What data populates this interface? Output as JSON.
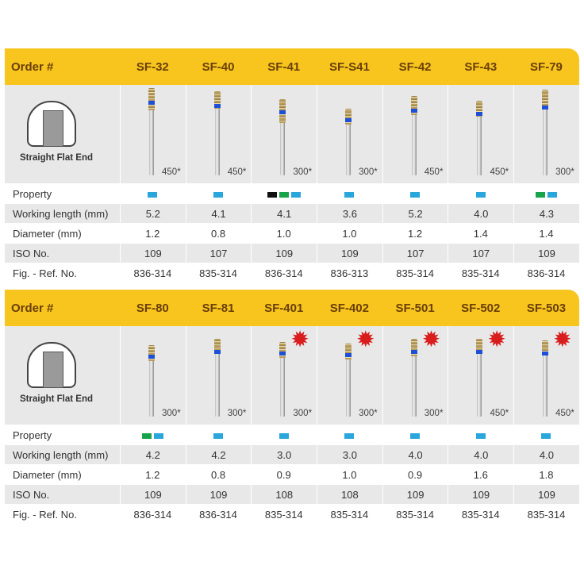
{
  "tables": [
    {
      "header_label": "Order #",
      "profile_label": "Straight Flat End",
      "row_labels": {
        "property": "Property",
        "working_length": "Working length (mm)",
        "diameter": "Diameter (mm)",
        "iso": "ISO No.",
        "ref": "Fig. - Ref. No."
      },
      "columns": [
        {
          "name": "SF-32",
          "rpm": "450*",
          "props": [
            "#29a6db"
          ],
          "working_length": "5.2",
          "diameter": "1.2",
          "iso": "109",
          "ref": "836-314",
          "is_new": false
        },
        {
          "name": "SF-40",
          "rpm": "450*",
          "props": [
            "#29a6db"
          ],
          "working_length": "4.1",
          "diameter": "0.8",
          "iso": "107",
          "ref": "835-314",
          "is_new": false
        },
        {
          "name": "SF-41",
          "rpm": "300*",
          "props": [
            "#111111",
            "#16a34a",
            "#29a6db"
          ],
          "working_length": "4.1",
          "diameter": "1.0",
          "iso": "109",
          "ref": "836-314",
          "is_new": false
        },
        {
          "name": "SF-S41",
          "rpm": "300*",
          "props": [
            "#29a6db"
          ],
          "working_length": "3.6",
          "diameter": "1.0",
          "iso": "109",
          "ref": "836-313",
          "is_new": false
        },
        {
          "name": "SF-42",
          "rpm": "450*",
          "props": [
            "#29a6db"
          ],
          "working_length": "5.2",
          "diameter": "1.2",
          "iso": "107",
          "ref": "835-314",
          "is_new": false
        },
        {
          "name": "SF-43",
          "rpm": "450*",
          "props": [
            "#29a6db"
          ],
          "working_length": "4.0",
          "diameter": "1.4",
          "iso": "107",
          "ref": "835-314",
          "is_new": false
        },
        {
          "name": "SF-79",
          "rpm": "300*",
          "props": [
            "#16a34a",
            "#29a6db"
          ],
          "working_length": "4.3",
          "diameter": "1.4",
          "iso": "109",
          "ref": "836-314",
          "is_new": false
        }
      ]
    },
    {
      "header_label": "Order #",
      "profile_label": "Straight Flat End",
      "row_labels": {
        "property": "Property",
        "working_length": "Working length (mm)",
        "diameter": "Diameter (mm)",
        "iso": "ISO No.",
        "ref": "Fig. - Ref. No."
      },
      "columns": [
        {
          "name": "SF-80",
          "rpm": "300*",
          "props": [
            "#16a34a",
            "#29a6db"
          ],
          "working_length": "4.2",
          "diameter": "1.2",
          "iso": "109",
          "ref": "836-314",
          "is_new": false
        },
        {
          "name": "SF-81",
          "rpm": "300*",
          "props": [
            "#29a6db"
          ],
          "working_length": "4.2",
          "diameter": "0.8",
          "iso": "109",
          "ref": "836-314",
          "is_new": false
        },
        {
          "name": "SF-401",
          "rpm": "300*",
          "props": [
            "#29a6db"
          ],
          "working_length": "3.0",
          "diameter": "0.9",
          "iso": "108",
          "ref": "835-314",
          "is_new": true
        },
        {
          "name": "SF-402",
          "rpm": "300*",
          "props": [
            "#29a6db"
          ],
          "working_length": "3.0",
          "diameter": "1.0",
          "iso": "108",
          "ref": "835-314",
          "is_new": true
        },
        {
          "name": "SF-501",
          "rpm": "300*",
          "props": [
            "#29a6db"
          ],
          "working_length": "4.0",
          "diameter": "0.9",
          "iso": "109",
          "ref": "835-314",
          "is_new": true
        },
        {
          "name": "SF-502",
          "rpm": "450*",
          "props": [
            "#29a6db"
          ],
          "working_length": "4.0",
          "diameter": "1.6",
          "iso": "109",
          "ref": "835-314",
          "is_new": true
        },
        {
          "name": "SF-503",
          "rpm": "450*",
          "props": [
            "#29a6db"
          ],
          "working_length": "4.0",
          "diameter": "1.8",
          "iso": "109",
          "ref": "835-314",
          "is_new": true
        }
      ]
    }
  ]
}
